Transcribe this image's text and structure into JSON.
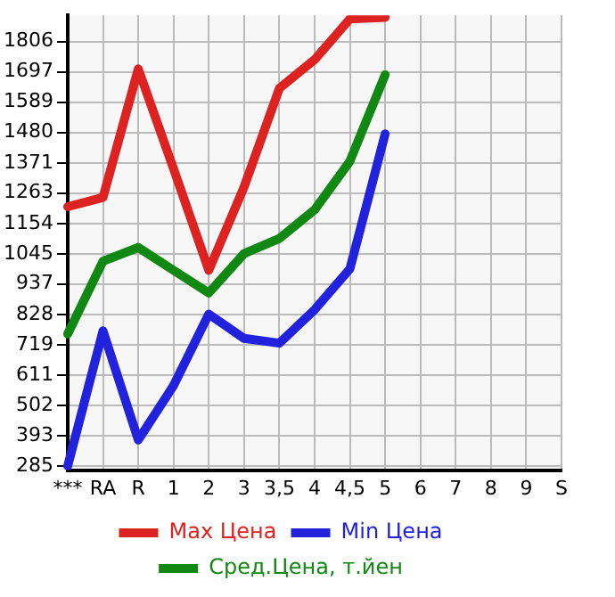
{
  "chart_data": {
    "type": "line",
    "categories": [
      "***",
      "RA",
      "R",
      "1",
      "2",
      "3",
      "3,5",
      "4",
      "4,5",
      "5",
      "6",
      "7",
      "8",
      "9",
      "S"
    ],
    "series": [
      {
        "name": "Max Цена",
        "color": "#dd2222",
        "values": [
          1214,
          1247,
          1708,
          1350,
          986,
          1285,
          1638,
          1741,
          1887,
          1893,
          null,
          null,
          null,
          null,
          null
        ]
      },
      {
        "name": "Min Цена",
        "color": "#2222dd",
        "values": [
          285,
          769,
          378,
          573,
          829,
          742,
          725,
          845,
          991,
          1475,
          null,
          null,
          null,
          null,
          null
        ]
      },
      {
        "name": "Сред.Цена, т.йен",
        "color": "#118811",
        "values": [
          758,
          1019,
          1068,
          986,
          905,
          1046,
          1100,
          1203,
          1377,
          1687,
          null,
          null,
          null,
          null,
          null
        ]
      }
    ],
    "ylim": [
      270,
      1900
    ],
    "yticks": [
      285,
      393,
      502,
      611,
      719,
      828,
      937,
      1045,
      1154,
      1263,
      1371,
      1480,
      1589,
      1697,
      1806
    ],
    "grid": true,
    "legend": "bottom",
    "marker": "none",
    "line_style": "solid"
  }
}
